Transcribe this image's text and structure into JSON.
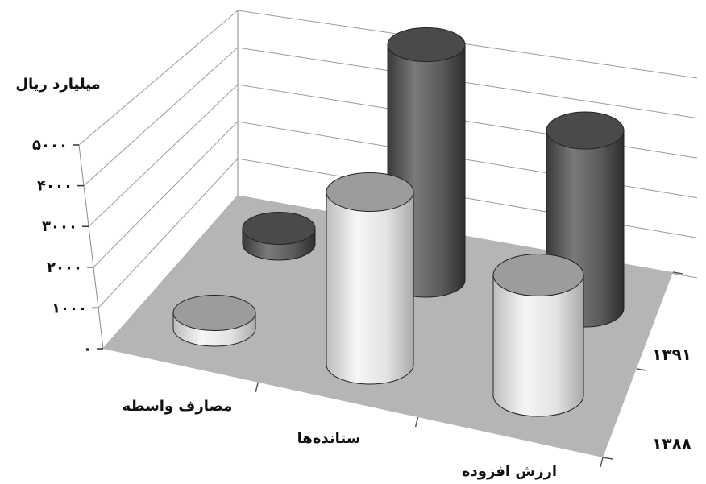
{
  "chart_data": {
    "type": "bar",
    "style": "3d-cylinder",
    "ylabel": "میلیارد ریال",
    "ylim": [
      0,
      5000
    ],
    "yticks": [
      0,
      1000,
      2000,
      3000,
      4000,
      5000
    ],
    "ytick_labels": [
      "۰",
      "۱۰۰۰",
      "۲۰۰۰",
      "۳۰۰۰",
      "۴۰۰۰",
      "۵۰۰۰"
    ],
    "categories": [
      "مصارف واسطه",
      "ستانده‌ها",
      "ارزش افزوده"
    ],
    "series": [
      {
        "name": "۱۳۹۱",
        "values": [
          300,
          4500,
          3400
        ],
        "color": "#5a5a5a"
      },
      {
        "name": "۱۳۸۸",
        "values": [
          300,
          3300,
          2300
        ],
        "color": "#cfcfcf"
      }
    ],
    "grid": true,
    "floor_color": "#b5b5b5"
  }
}
